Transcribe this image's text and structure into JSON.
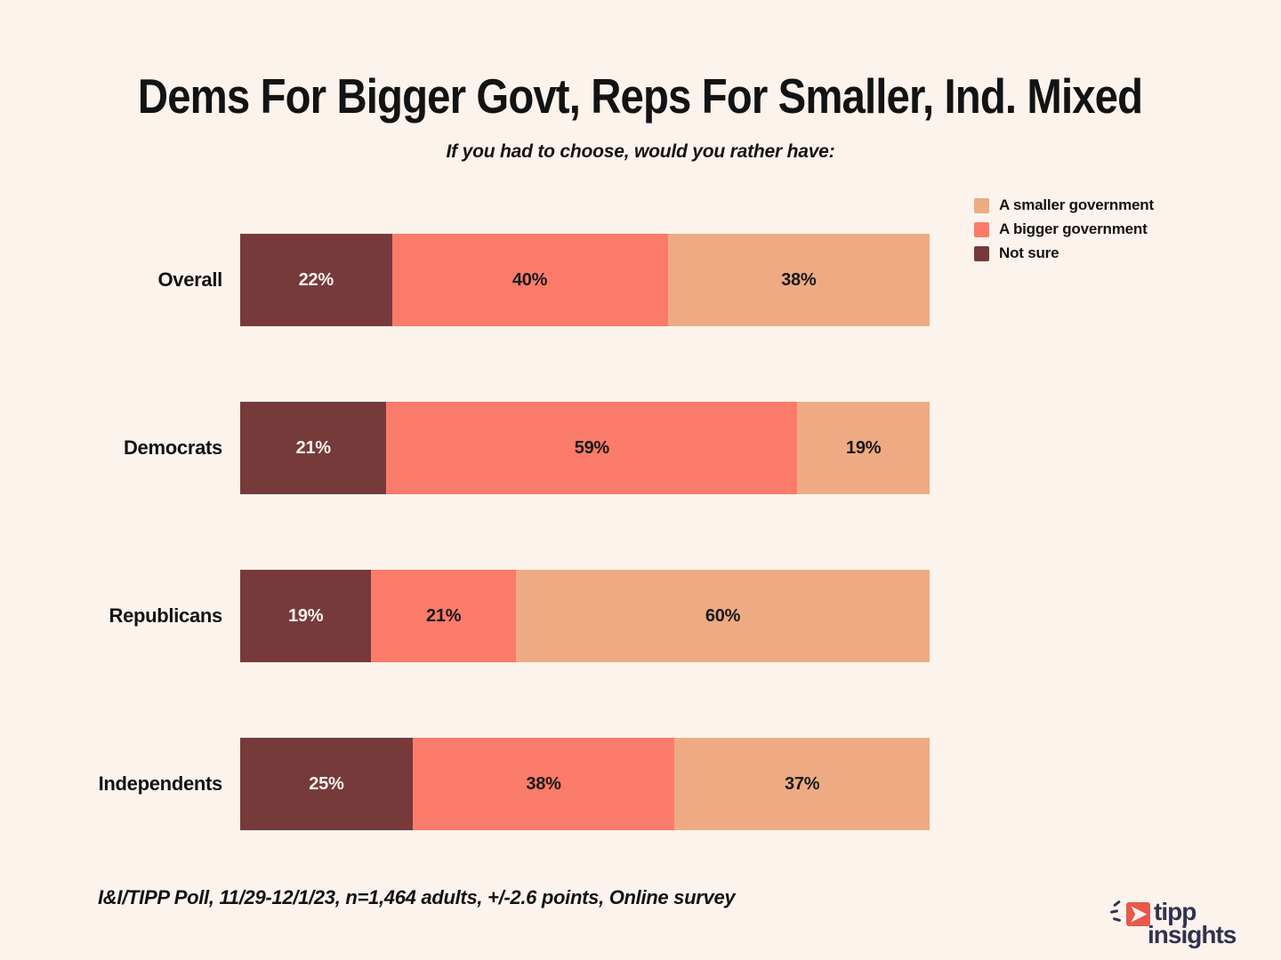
{
  "title": "Dems For Bigger Govt, Reps For Smaller, Ind. Mixed",
  "subtitle": "If you had to choose, would you rather have:",
  "footer": "I&I/TIPP Poll, 11/29-12/1/23, n=1,464 adults, +/-2.6 points, Online survey",
  "colors": {
    "background": "#FDF3ED",
    "smaller_government": "#EEAB83",
    "bigger_government": "#FB7B6B",
    "not_sure": "#763A3B",
    "text": "#131313",
    "label_on_dark": "#F8F1EC",
    "label_on_light": "#1A1A1A",
    "logo_navy": "#30324E",
    "logo_coral": "#E8594B"
  },
  "legend": {
    "position": "top-right",
    "items": [
      {
        "label": "A smaller government",
        "color": "#EEAB83"
      },
      {
        "label": "A bigger government",
        "color": "#FB7B6B"
      },
      {
        "label": "Not sure",
        "color": "#763A3B"
      }
    ]
  },
  "chart_data": {
    "type": "bar",
    "orientation": "horizontal",
    "stacked": true,
    "normalized_to_full_width": true,
    "value_suffix": "%",
    "xlim": [
      0,
      100
    ],
    "categories": [
      "Overall",
      "Democrats",
      "Republicans",
      "Independents"
    ],
    "series": [
      {
        "name": "Not sure",
        "color": "#763A3B",
        "text_color": "#F8F1EC",
        "values": [
          22,
          21,
          19,
          25
        ]
      },
      {
        "name": "A bigger government",
        "color": "#FB7B6B",
        "text_color": "#1A1A1A",
        "values": [
          40,
          59,
          21,
          38
        ]
      },
      {
        "name": "A smaller government",
        "color": "#EEAB83",
        "text_color": "#1A1A1A",
        "values": [
          38,
          19,
          60,
          37
        ]
      }
    ]
  },
  "logo": {
    "line1": "tipp",
    "line2": "insights"
  }
}
